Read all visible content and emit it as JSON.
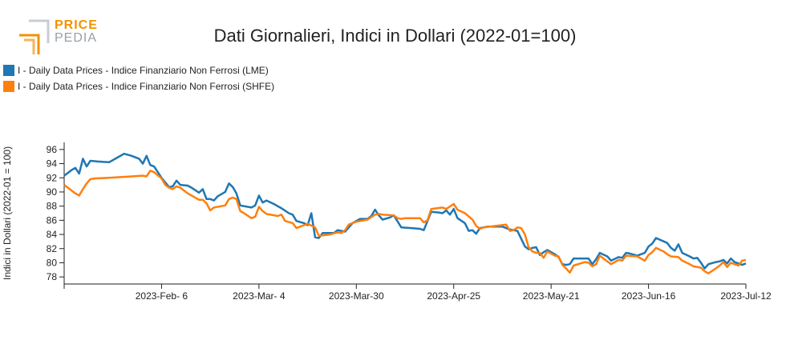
{
  "logo": {
    "line1": "PRICE",
    "line2": "PEDIA"
  },
  "title": "Dati Giornalieri, Indici in Dollari (2022-01=100)",
  "colors": {
    "lme": "#1f77b4",
    "shfe": "#ff7f0e",
    "axis": "#222222"
  },
  "legend": [
    {
      "label": "I - Daily Data Prices - Indice Finanziario Non Ferrosi (LME)",
      "color": "#1f77b4"
    },
    {
      "label": "I - Daily Data Prices - Indice Finanziario Non Ferrosi (SHFE)",
      "color": "#ff7f0e"
    }
  ],
  "chart_data": {
    "type": "line",
    "title": "Dati Giornalieri, Indici in Dollari (2022-01=100)",
    "xlabel": "",
    "ylabel": "Indici in Dollari (2022-01 = 100)",
    "ylim": [
      77,
      97
    ],
    "y_ticks": [
      78,
      80,
      82,
      84,
      86,
      88,
      90,
      92,
      94,
      96
    ],
    "x_range": [
      "2023-01-11",
      "2023-07-12"
    ],
    "x_ticks": [
      {
        "date": "2023-02-06",
        "label": "2023-Feb- 6"
      },
      {
        "date": "2023-03-04",
        "label": "2023-Mar- 4"
      },
      {
        "date": "2023-03-30",
        "label": "2023-Mar-30"
      },
      {
        "date": "2023-04-25",
        "label": "2023-Apr-25"
      },
      {
        "date": "2023-05-21",
        "label": "2023-May-21"
      },
      {
        "date": "2023-06-16",
        "label": "2023-Jun-16"
      },
      {
        "date": "2023-07-12",
        "label": "2023-Jul-12"
      }
    ],
    "legend_position": "top-left",
    "grid": false,
    "series": [
      {
        "name": "I - Daily Data Prices - Indice Finanziario Non Ferrosi (LME)",
        "color": "#1f77b4",
        "points": [
          [
            "2023-01-11",
            92.3
          ],
          [
            "2023-01-12",
            92.7
          ],
          [
            "2023-01-13",
            93.1
          ],
          [
            "2023-01-14",
            93.4
          ],
          [
            "2023-01-15",
            92.6
          ],
          [
            "2023-01-16",
            94.7
          ],
          [
            "2023-01-17",
            93.6
          ],
          [
            "2023-01-18",
            94.4
          ],
          [
            "2023-01-20",
            94.3
          ],
          [
            "2023-01-23",
            94.2
          ],
          [
            "2023-01-25",
            94.8
          ],
          [
            "2023-01-27",
            95.4
          ],
          [
            "2023-01-29",
            95.1
          ],
          [
            "2023-01-31",
            94.7
          ],
          [
            "2023-02-01",
            94.0
          ],
          [
            "2023-02-02",
            95.1
          ],
          [
            "2023-02-03",
            93.8
          ],
          [
            "2023-02-04",
            93.6
          ],
          [
            "2023-02-05",
            92.8
          ],
          [
            "2023-02-06",
            92.0
          ],
          [
            "2023-02-08",
            90.7
          ],
          [
            "2023-02-09",
            90.8
          ],
          [
            "2023-02-10",
            91.6
          ],
          [
            "2023-02-11",
            91.0
          ],
          [
            "2023-02-13",
            90.9
          ],
          [
            "2023-02-14",
            90.6
          ],
          [
            "2023-02-16",
            89.9
          ],
          [
            "2023-02-17",
            90.4
          ],
          [
            "2023-02-18",
            89.0
          ],
          [
            "2023-02-19",
            89.0
          ],
          [
            "2023-02-20",
            88.8
          ],
          [
            "2023-02-21",
            89.4
          ],
          [
            "2023-02-23",
            90.0
          ],
          [
            "2023-02-24",
            91.2
          ],
          [
            "2023-02-25",
            90.7
          ],
          [
            "2023-02-26",
            89.8
          ],
          [
            "2023-02-27",
            88.1
          ],
          [
            "2023-03-02",
            87.8
          ],
          [
            "2023-03-03",
            88.1
          ],
          [
            "2023-03-04",
            89.5
          ],
          [
            "2023-03-05",
            88.5
          ],
          [
            "2023-03-06",
            88.8
          ],
          [
            "2023-03-08",
            88.3
          ],
          [
            "2023-03-10",
            87.7
          ],
          [
            "2023-03-12",
            87.0
          ],
          [
            "2023-03-13",
            86.8
          ],
          [
            "2023-03-14",
            85.9
          ],
          [
            "2023-03-16",
            85.6
          ],
          [
            "2023-03-17",
            85.3
          ],
          [
            "2023-03-18",
            87.0
          ],
          [
            "2023-03-19",
            83.6
          ],
          [
            "2023-03-20",
            83.5
          ],
          [
            "2023-03-21",
            84.2
          ],
          [
            "2023-03-24",
            84.2
          ],
          [
            "2023-03-25",
            84.6
          ],
          [
            "2023-03-27",
            84.4
          ],
          [
            "2023-03-28",
            85.0
          ],
          [
            "2023-03-29",
            85.6
          ],
          [
            "2023-03-31",
            86.2
          ],
          [
            "2023-04-02",
            86.2
          ],
          [
            "2023-04-03",
            86.6
          ],
          [
            "2023-04-04",
            87.5
          ],
          [
            "2023-04-05",
            86.7
          ],
          [
            "2023-04-06",
            86.1
          ],
          [
            "2023-04-08",
            86.4
          ],
          [
            "2023-04-09",
            86.7
          ],
          [
            "2023-04-11",
            85.0
          ],
          [
            "2023-04-16",
            84.8
          ],
          [
            "2023-04-17",
            84.6
          ],
          [
            "2023-04-19",
            87.2
          ],
          [
            "2023-04-21",
            87.1
          ],
          [
            "2023-04-22",
            87.0
          ],
          [
            "2023-04-23",
            87.4
          ],
          [
            "2023-04-24",
            86.8
          ],
          [
            "2023-04-25",
            87.6
          ],
          [
            "2023-04-26",
            86.3
          ],
          [
            "2023-04-28",
            85.6
          ],
          [
            "2023-04-29",
            84.5
          ],
          [
            "2023-04-30",
            84.6
          ],
          [
            "2023-05-01",
            84.1
          ],
          [
            "2023-05-02",
            84.9
          ],
          [
            "2023-05-04",
            85.1
          ],
          [
            "2023-05-08",
            85.1
          ],
          [
            "2023-05-09",
            84.9
          ],
          [
            "2023-05-10",
            84.7
          ],
          [
            "2023-05-11",
            84.6
          ],
          [
            "2023-05-12",
            84.5
          ],
          [
            "2023-05-14",
            82.3
          ],
          [
            "2023-05-15",
            81.9
          ],
          [
            "2023-05-16",
            82.1
          ],
          [
            "2023-05-17",
            82.2
          ],
          [
            "2023-05-18",
            81.1
          ],
          [
            "2023-05-19",
            81.5
          ],
          [
            "2023-05-20",
            81.8
          ],
          [
            "2023-05-22",
            81.2
          ],
          [
            "2023-05-23",
            80.8
          ],
          [
            "2023-05-24",
            79.8
          ],
          [
            "2023-05-25",
            79.7
          ],
          [
            "2023-05-26",
            79.8
          ],
          [
            "2023-05-27",
            80.6
          ],
          [
            "2023-05-31",
            80.6
          ],
          [
            "2023-06-01",
            79.8
          ],
          [
            "2023-06-02",
            80.5
          ],
          [
            "2023-06-03",
            81.4
          ],
          [
            "2023-06-05",
            80.9
          ],
          [
            "2023-06-06",
            80.3
          ],
          [
            "2023-06-08",
            80.8
          ],
          [
            "2023-06-09",
            80.7
          ],
          [
            "2023-06-10",
            81.4
          ],
          [
            "2023-06-11",
            81.3
          ],
          [
            "2023-06-13",
            81.0
          ],
          [
            "2023-06-14",
            81.2
          ],
          [
            "2023-06-15",
            81.4
          ],
          [
            "2023-06-16",
            82.3
          ],
          [
            "2023-06-17",
            82.7
          ],
          [
            "2023-06-18",
            83.5
          ],
          [
            "2023-06-21",
            82.8
          ],
          [
            "2023-06-22",
            82.1
          ],
          [
            "2023-06-23",
            81.7
          ],
          [
            "2023-06-24",
            82.6
          ],
          [
            "2023-06-25",
            81.4
          ],
          [
            "2023-06-27",
            80.9
          ],
          [
            "2023-06-28",
            80.6
          ],
          [
            "2023-06-29",
            80.7
          ],
          [
            "2023-06-30",
            80.0
          ],
          [
            "2023-07-01",
            79.2
          ],
          [
            "2023-07-02",
            79.8
          ],
          [
            "2023-07-04",
            80.1
          ],
          [
            "2023-07-05",
            80.2
          ],
          [
            "2023-07-06",
            80.4
          ],
          [
            "2023-07-07",
            79.9
          ],
          [
            "2023-07-08",
            80.6
          ],
          [
            "2023-07-09",
            80.1
          ],
          [
            "2023-07-11",
            79.7
          ],
          [
            "2023-07-12",
            79.9
          ]
        ]
      },
      {
        "name": "I - Daily Data Prices - Indice Finanziario Non Ferrosi (SHFE)",
        "color": "#ff7f0e",
        "points": [
          [
            "2023-01-11",
            91.0
          ],
          [
            "2023-01-14",
            89.8
          ],
          [
            "2023-01-15",
            89.5
          ],
          [
            "2023-01-16",
            90.4
          ],
          [
            "2023-01-17",
            91.2
          ],
          [
            "2023-01-18",
            91.8
          ],
          [
            "2023-01-19",
            91.9
          ],
          [
            "2023-01-23",
            92.0
          ],
          [
            "2023-02-01",
            92.3
          ],
          [
            "2023-02-02",
            92.2
          ],
          [
            "2023-02-03",
            93.0
          ],
          [
            "2023-02-04",
            92.8
          ],
          [
            "2023-02-06",
            91.9
          ],
          [
            "2023-02-07",
            91.0
          ],
          [
            "2023-02-08",
            90.6
          ],
          [
            "2023-02-09",
            90.4
          ],
          [
            "2023-02-10",
            90.8
          ],
          [
            "2023-02-11",
            90.6
          ],
          [
            "2023-02-13",
            89.8
          ],
          [
            "2023-02-16",
            88.9
          ],
          [
            "2023-02-17",
            88.9
          ],
          [
            "2023-02-18",
            88.4
          ],
          [
            "2023-02-19",
            87.4
          ],
          [
            "2023-02-20",
            87.8
          ],
          [
            "2023-02-23",
            88.1
          ],
          [
            "2023-02-24",
            89.0
          ],
          [
            "2023-02-25",
            89.2
          ],
          [
            "2023-02-26",
            89.0
          ],
          [
            "2023-02-27",
            87.3
          ],
          [
            "2023-02-28",
            87.0
          ],
          [
            "2023-03-02",
            86.3
          ],
          [
            "2023-03-03",
            86.5
          ],
          [
            "2023-03-04",
            87.9
          ],
          [
            "2023-03-05",
            87.3
          ],
          [
            "2023-03-06",
            86.9
          ],
          [
            "2023-03-09",
            86.6
          ],
          [
            "2023-03-10",
            86.8
          ],
          [
            "2023-03-11",
            85.9
          ],
          [
            "2023-03-13",
            85.6
          ],
          [
            "2023-03-14",
            84.9
          ],
          [
            "2023-03-16",
            85.3
          ],
          [
            "2023-03-17",
            85.5
          ],
          [
            "2023-03-19",
            85.0
          ],
          [
            "2023-03-20",
            83.8
          ],
          [
            "2023-03-23",
            84.0
          ],
          [
            "2023-03-25",
            84.3
          ],
          [
            "2023-03-26",
            84.2
          ],
          [
            "2023-03-27",
            84.6
          ],
          [
            "2023-03-28",
            85.4
          ],
          [
            "2023-03-30",
            85.8
          ],
          [
            "2023-04-02",
            86.1
          ],
          [
            "2023-04-04",
            86.8
          ],
          [
            "2023-04-05",
            86.9
          ],
          [
            "2023-04-06",
            86.8
          ],
          [
            "2023-04-09",
            86.7
          ],
          [
            "2023-04-10",
            86.3
          ],
          [
            "2023-04-11",
            86.2
          ],
          [
            "2023-04-12",
            86.3
          ],
          [
            "2023-04-16",
            86.3
          ],
          [
            "2023-04-17",
            85.7
          ],
          [
            "2023-04-18",
            86.0
          ],
          [
            "2023-04-19",
            87.6
          ],
          [
            "2023-04-22",
            87.8
          ],
          [
            "2023-04-23",
            87.6
          ],
          [
            "2023-04-25",
            88.3
          ],
          [
            "2023-04-26",
            87.5
          ],
          [
            "2023-04-28",
            87.0
          ],
          [
            "2023-04-30",
            86.1
          ],
          [
            "2023-05-01",
            85.2
          ],
          [
            "2023-05-02",
            84.8
          ],
          [
            "2023-05-03",
            85.0
          ],
          [
            "2023-05-09",
            85.4
          ],
          [
            "2023-05-10",
            84.5
          ],
          [
            "2023-05-11",
            84.6
          ],
          [
            "2023-05-12",
            85.0
          ],
          [
            "2023-05-13",
            84.9
          ],
          [
            "2023-05-14",
            84.0
          ],
          [
            "2023-05-15",
            82.2
          ],
          [
            "2023-05-16",
            81.6
          ],
          [
            "2023-05-17",
            81.4
          ],
          [
            "2023-05-18",
            81.4
          ],
          [
            "2023-05-19",
            80.7
          ],
          [
            "2023-05-20",
            81.6
          ],
          [
            "2023-05-22",
            81.0
          ],
          [
            "2023-05-23",
            80.9
          ],
          [
            "2023-05-24",
            79.7
          ],
          [
            "2023-05-25",
            79.2
          ],
          [
            "2023-05-26",
            78.6
          ],
          [
            "2023-05-27",
            79.6
          ],
          [
            "2023-05-30",
            80.1
          ],
          [
            "2023-05-31",
            80.0
          ],
          [
            "2023-06-01",
            79.5
          ],
          [
            "2023-06-02",
            79.8
          ],
          [
            "2023-06-03",
            81.0
          ],
          [
            "2023-06-05",
            80.2
          ],
          [
            "2023-06-06",
            79.8
          ],
          [
            "2023-06-07",
            80.1
          ],
          [
            "2023-06-08",
            80.4
          ],
          [
            "2023-06-09",
            80.3
          ],
          [
            "2023-06-10",
            81.0
          ],
          [
            "2023-06-13",
            80.9
          ],
          [
            "2023-06-14",
            80.6
          ],
          [
            "2023-06-15",
            80.3
          ],
          [
            "2023-06-16",
            81.1
          ],
          [
            "2023-06-17",
            81.5
          ],
          [
            "2023-06-18",
            82.1
          ],
          [
            "2023-06-20",
            81.6
          ],
          [
            "2023-06-21",
            81.2
          ],
          [
            "2023-06-22",
            80.9
          ],
          [
            "2023-06-24",
            80.8
          ],
          [
            "2023-06-25",
            80.3
          ],
          [
            "2023-06-27",
            79.8
          ],
          [
            "2023-06-28",
            79.5
          ],
          [
            "2023-06-30",
            79.3
          ],
          [
            "2023-07-01",
            78.8
          ],
          [
            "2023-07-02",
            78.5
          ],
          [
            "2023-07-04",
            79.2
          ],
          [
            "2023-07-05",
            79.6
          ],
          [
            "2023-07-06",
            80.1
          ],
          [
            "2023-07-07",
            79.4
          ],
          [
            "2023-07-08",
            80.0
          ],
          [
            "2023-07-10",
            79.6
          ],
          [
            "2023-07-11",
            80.3
          ],
          [
            "2023-07-12",
            80.4
          ]
        ]
      }
    ]
  }
}
